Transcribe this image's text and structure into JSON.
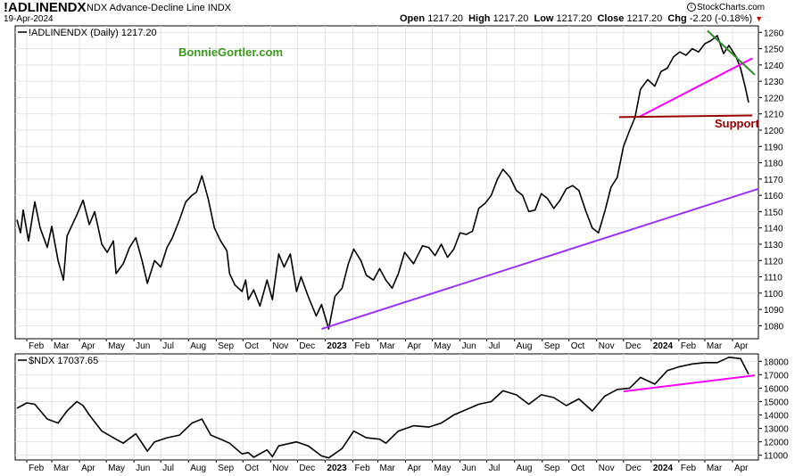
{
  "header": {
    "symbol": "!ADLINENDX",
    "description": "NDX Advance-Decline Line INDX",
    "date": "19-Apr-2024",
    "open_label": "Open",
    "open": "1217.20",
    "high_label": "High",
    "high": "1217.20",
    "low_label": "Low",
    "low": "1217.20",
    "close_label": "Close",
    "close": "1217.20",
    "chg_label": "Chg",
    "chg": "-2.20 (-0.18%)",
    "brand": "StockCharts.com",
    "brand_icon": "copyright-icon"
  },
  "colors": {
    "price_line": "#000000",
    "magenta_trendline": "#ff00ff",
    "purple_trendline": "#9933ff",
    "green_trendline": "#2e8b2e",
    "support_line": "#990000",
    "watermark": "#3a9a1a"
  },
  "chart_data": [
    {
      "type": "line",
      "legend": "!ADLINENDX (Daily) 1217.20",
      "watermark": "BonnieGortler.com",
      "annotation": "Support",
      "ylim": [
        1072,
        1264
      ],
      "y_ticks": [
        1080,
        1090,
        1100,
        1110,
        1120,
        1130,
        1140,
        1150,
        1160,
        1170,
        1180,
        1190,
        1200,
        1210,
        1220,
        1230,
        1240,
        1250,
        1260
      ],
      "x_labels": [
        "Feb",
        "Mar",
        "Apr",
        "May",
        "Jun",
        "Jul",
        "Aug",
        "Sep",
        "Oct",
        "Nov",
        "Dec",
        "2023",
        "Feb",
        "Mar",
        "Apr",
        "May",
        "Jun",
        "Jul",
        "Aug",
        "Sep",
        "Oct",
        "Nov",
        "Dec",
        "2024",
        "Feb",
        "Mar",
        "Apr"
      ],
      "grid": true,
      "series": [
        {
          "x": [
            "2022-01-21",
            "2022-01-25",
            "2022-01-28",
            "2022-02-03",
            "2022-02-10",
            "2022-02-16",
            "2022-02-24",
            "2022-03-01",
            "2022-03-08",
            "2022-03-14",
            "2022-03-18",
            "2022-03-29",
            "2022-04-05",
            "2022-04-12",
            "2022-04-18",
            "2022-04-26",
            "2022-05-02",
            "2022-05-09",
            "2022-05-12",
            "2022-05-20",
            "2022-05-27",
            "2022-06-03",
            "2022-06-10",
            "2022-06-16",
            "2022-06-24",
            "2022-07-01",
            "2022-07-08",
            "2022-07-14",
            "2022-07-22",
            "2022-07-29",
            "2022-08-05",
            "2022-08-10",
            "2022-08-16",
            "2022-08-23",
            "2022-08-30",
            "2022-09-06",
            "2022-09-13",
            "2022-09-16",
            "2022-09-22",
            "2022-09-30",
            "2022-10-04",
            "2022-10-07",
            "2022-10-13",
            "2022-10-20",
            "2022-10-28",
            "2022-11-03",
            "2022-11-10",
            "2022-11-16",
            "2022-11-23",
            "2022-11-30",
            "2022-12-05",
            "2022-12-13",
            "2022-12-22",
            "2022-12-28",
            "2023-01-05",
            "2023-01-12",
            "2023-01-20",
            "2023-01-27",
            "2023-02-02",
            "2023-02-10",
            "2023-02-16",
            "2023-02-24",
            "2023-03-03",
            "2023-03-10",
            "2023-03-17",
            "2023-03-24",
            "2023-03-31",
            "2023-04-10",
            "2023-04-20",
            "2023-04-27",
            "2023-05-04",
            "2023-05-11",
            "2023-05-18",
            "2023-05-25",
            "2023-06-01",
            "2023-06-08",
            "2023-06-15",
            "2023-06-22",
            "2023-06-29",
            "2023-07-06",
            "2023-07-13",
            "2023-07-19",
            "2023-07-27",
            "2023-08-03",
            "2023-08-10",
            "2023-08-17",
            "2023-08-24",
            "2023-08-31",
            "2023-09-07",
            "2023-09-14",
            "2023-09-21",
            "2023-09-28",
            "2023-10-05",
            "2023-10-12",
            "2023-10-20",
            "2023-10-27",
            "2023-11-03",
            "2023-11-10",
            "2023-11-17",
            "2023-11-24",
            "2023-12-01",
            "2023-12-08",
            "2023-12-14",
            "2023-12-20",
            "2023-12-28",
            "2024-01-05",
            "2024-01-12",
            "2024-01-19",
            "2024-01-26",
            "2024-02-02",
            "2024-02-09",
            "2024-02-16",
            "2024-02-23",
            "2024-03-01",
            "2024-03-08",
            "2024-03-15",
            "2024-03-22",
            "2024-03-28",
            "2024-04-05",
            "2024-04-10",
            "2024-04-15",
            "2024-04-19"
          ],
          "y": [
            1145,
            1137,
            1151,
            1132,
            1156,
            1140,
            1128,
            1141,
            1120,
            1108,
            1135,
            1148,
            1157,
            1142,
            1150,
            1130,
            1125,
            1132,
            1112,
            1118,
            1128,
            1134,
            1120,
            1106,
            1120,
            1116,
            1128,
            1134,
            1145,
            1156,
            1160,
            1162,
            1172,
            1158,
            1140,
            1132,
            1126,
            1112,
            1105,
            1101,
            1108,
            1096,
            1102,
            1092,
            1108,
            1096,
            1124,
            1116,
            1124,
            1101,
            1110,
            1098,
            1086,
            1093,
            1078,
            1098,
            1103,
            1118,
            1127,
            1120,
            1111,
            1108,
            1115,
            1108,
            1103,
            1112,
            1125,
            1118,
            1129,
            1128,
            1123,
            1130,
            1122,
            1127,
            1137,
            1136,
            1138,
            1152,
            1155,
            1160,
            1170,
            1176,
            1171,
            1163,
            1160,
            1150,
            1151,
            1161,
            1158,
            1152,
            1157,
            1164,
            1166,
            1163,
            1150,
            1140,
            1137,
            1150,
            1165,
            1171,
            1190,
            1200,
            1208,
            1225,
            1231,
            1227,
            1236,
            1238,
            1245,
            1248,
            1246,
            1250,
            1248,
            1253,
            1255,
            1258,
            1247,
            1252,
            1245,
            1238,
            1227,
            1217
          ]
        }
      ],
      "trendlines": [
        {
          "name": "long-term uptrend",
          "color": "purple",
          "x": [
            "2022-12-28",
            "2024-04-30"
          ],
          "y": [
            1078,
            1164
          ]
        },
        {
          "name": "short-term uptrend",
          "color": "magenta",
          "x": [
            "2023-12-18",
            "2024-04-23"
          ],
          "y": [
            1208,
            1244
          ]
        },
        {
          "name": "downtrend",
          "color": "green",
          "x": [
            "2024-03-04",
            "2024-04-26"
          ],
          "y": [
            1261,
            1234
          ]
        },
        {
          "name": "support",
          "color": "dark-red",
          "x": [
            "2023-11-26",
            "2024-04-23"
          ],
          "y": [
            1208,
            1209
          ]
        }
      ]
    },
    {
      "type": "line",
      "legend": "$NDX 17037.65",
      "ylim": [
        10650,
        18550
      ],
      "y_ticks": [
        11000,
        12000,
        13000,
        14000,
        15000,
        16000,
        17000,
        18000
      ],
      "x_labels": [
        "Feb",
        "Mar",
        "Apr",
        "May",
        "Jun",
        "Jul",
        "Aug",
        "Sep",
        "Oct",
        "Nov",
        "Dec",
        "2023",
        "Feb",
        "Mar",
        "Apr",
        "May",
        "Jun",
        "Jul",
        "Aug",
        "Sep",
        "Oct",
        "Nov",
        "Dec",
        "2024",
        "Feb",
        "Mar",
        "Apr"
      ],
      "grid": true,
      "series": [
        {
          "x": [
            "2022-01-21",
            "2022-02-01",
            "2022-02-10",
            "2022-02-24",
            "2022-03-08",
            "2022-03-18",
            "2022-03-29",
            "2022-04-05",
            "2022-04-12",
            "2022-04-26",
            "2022-05-09",
            "2022-05-20",
            "2022-06-03",
            "2022-06-16",
            "2022-06-24",
            "2022-07-08",
            "2022-07-22",
            "2022-08-05",
            "2022-08-16",
            "2022-08-26",
            "2022-09-06",
            "2022-09-16",
            "2022-09-30",
            "2022-10-07",
            "2022-10-13",
            "2022-10-28",
            "2022-11-03",
            "2022-11-10",
            "2022-11-30",
            "2022-12-13",
            "2022-12-28",
            "2023-01-05",
            "2023-01-20",
            "2023-02-02",
            "2023-02-16",
            "2023-03-03",
            "2023-03-10",
            "2023-03-24",
            "2023-04-10",
            "2023-04-27",
            "2023-05-11",
            "2023-05-25",
            "2023-06-08",
            "2023-06-22",
            "2023-07-06",
            "2023-07-19",
            "2023-08-03",
            "2023-08-17",
            "2023-08-31",
            "2023-09-14",
            "2023-09-28",
            "2023-10-12",
            "2023-10-27",
            "2023-11-10",
            "2023-11-24",
            "2023-12-08",
            "2023-12-20",
            "2024-01-05",
            "2024-01-19",
            "2024-02-02",
            "2024-02-16",
            "2024-03-01",
            "2024-03-15",
            "2024-03-28",
            "2024-04-10",
            "2024-04-19"
          ],
          "y": [
            14500,
            14900,
            14800,
            13700,
            13400,
            14300,
            15000,
            14700,
            14000,
            12800,
            12300,
            11900,
            12600,
            11300,
            12000,
            12300,
            12500,
            13400,
            13700,
            12500,
            12200,
            11900,
            11100,
            11200,
            10850,
            11400,
            10900,
            11700,
            12000,
            11700,
            10950,
            10800,
            11500,
            12800,
            12300,
            12200,
            11900,
            12800,
            13200,
            13100,
            13400,
            14000,
            14400,
            14800,
            15000,
            15800,
            15500,
            14800,
            15500,
            15300,
            14700,
            15200,
            14300,
            15400,
            15900,
            16000,
            16800,
            16300,
            17300,
            17600,
            17800,
            17900,
            17900,
            18300,
            18200,
            17037
          ]
        }
      ],
      "trendlines": [
        {
          "name": "uptrend",
          "color": "magenta",
          "x": [
            "2023-12-01",
            "2024-04-26"
          ],
          "y": [
            15750,
            16950
          ]
        }
      ]
    }
  ]
}
